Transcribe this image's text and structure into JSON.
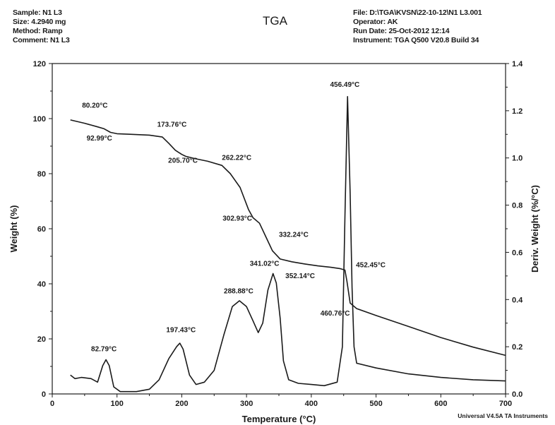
{
  "header_left": [
    "Sample: N1 L3",
    "Size:  4.2940 mg",
    "Method: Ramp",
    "Comment: N1 L3"
  ],
  "header_right": [
    "File: D:\\TGA\\KVSN\\22-10-12\\N1 L3.001",
    "Operator: AK",
    "Run Date: 25-Oct-2012 12:14",
    "Instrument: TGA Q500 V20.8 Build 34"
  ],
  "footer": "Universal V4.5A TA Instruments",
  "chart_data": {
    "type": "line",
    "title": "TGA",
    "xlabel": "Temperature (°C)",
    "ylabel": "Weight (%)",
    "y2label": "Deriv. Weight (%/°C)",
    "xlim": [
      0,
      700
    ],
    "ylim": [
      0,
      120
    ],
    "y2lim": [
      0.0,
      1.4
    ],
    "x_ticks": [
      "0",
      "100",
      "200",
      "300",
      "400",
      "500",
      "600",
      "700"
    ],
    "y_ticks": [
      "0",
      "20",
      "40",
      "60",
      "80",
      "100",
      "120"
    ],
    "y2_ticks": [
      "0.0",
      "0.2",
      "0.4",
      "0.6",
      "0.8",
      "1.0",
      "1.2",
      "1.4"
    ],
    "series": [
      {
        "axis": "left",
        "color": "#1a1a1a",
        "points": [
          [
            28,
            99.5
          ],
          [
            50,
            98.3
          ],
          [
            70,
            97.0
          ],
          [
            80,
            96.3
          ],
          [
            90,
            95.0
          ],
          [
            100,
            94.5
          ],
          [
            120,
            94.3
          ],
          [
            150,
            94.0
          ],
          [
            170,
            93.3
          ],
          [
            180,
            91.0
          ],
          [
            190,
            88.5
          ],
          [
            200,
            87.0
          ],
          [
            206,
            86.3
          ],
          [
            220,
            85.5
          ],
          [
            240,
            84.5
          ],
          [
            262,
            83.0
          ],
          [
            275,
            80.0
          ],
          [
            290,
            75.0
          ],
          [
            303,
            67.0
          ],
          [
            310,
            64.0
          ],
          [
            320,
            62.0
          ],
          [
            332,
            56.0
          ],
          [
            340,
            52.0
          ],
          [
            352,
            49.0
          ],
          [
            370,
            48.0
          ],
          [
            390,
            47.2
          ],
          [
            410,
            46.5
          ],
          [
            430,
            46.0
          ],
          [
            445,
            45.5
          ],
          [
            452,
            45.0
          ],
          [
            455,
            41.0
          ],
          [
            460,
            33.0
          ],
          [
            470,
            31.0
          ],
          [
            500,
            28.5
          ],
          [
            550,
            24.5
          ],
          [
            600,
            20.5
          ],
          [
            650,
            17.0
          ],
          [
            700,
            14.0
          ]
        ]
      },
      {
        "axis": "right",
        "color": "#1a1a1a",
        "points": [
          [
            28,
            0.08
          ],
          [
            35,
            0.065
          ],
          [
            45,
            0.07
          ],
          [
            60,
            0.065
          ],
          [
            70,
            0.05
          ],
          [
            78,
            0.12
          ],
          [
            83,
            0.145
          ],
          [
            88,
            0.12
          ],
          [
            95,
            0.03
          ],
          [
            105,
            0.01
          ],
          [
            130,
            0.01
          ],
          [
            150,
            0.02
          ],
          [
            165,
            0.06
          ],
          [
            180,
            0.15
          ],
          [
            192,
            0.2
          ],
          [
            197,
            0.215
          ],
          [
            202,
            0.19
          ],
          [
            212,
            0.08
          ],
          [
            222,
            0.04
          ],
          [
            235,
            0.05
          ],
          [
            250,
            0.1
          ],
          [
            265,
            0.25
          ],
          [
            278,
            0.37
          ],
          [
            289,
            0.395
          ],
          [
            300,
            0.37
          ],
          [
            310,
            0.31
          ],
          [
            318,
            0.26
          ],
          [
            325,
            0.3
          ],
          [
            333,
            0.44
          ],
          [
            341,
            0.51
          ],
          [
            346,
            0.47
          ],
          [
            352,
            0.32
          ],
          [
            357,
            0.14
          ],
          [
            365,
            0.06
          ],
          [
            380,
            0.045
          ],
          [
            400,
            0.04
          ],
          [
            420,
            0.035
          ],
          [
            440,
            0.05
          ],
          [
            448,
            0.2
          ],
          [
            452,
            0.75
          ],
          [
            456,
            1.26
          ],
          [
            460,
            0.85
          ],
          [
            463,
            0.45
          ],
          [
            466,
            0.2
          ],
          [
            470,
            0.13
          ],
          [
            500,
            0.11
          ],
          [
            550,
            0.085
          ],
          [
            600,
            0.07
          ],
          [
            650,
            0.06
          ],
          [
            700,
            0.055
          ]
        ]
      }
    ],
    "annotations": [
      {
        "text": "80.20°C",
        "x": 46,
        "y": 104
      },
      {
        "text": "92.99°C",
        "x": 53,
        "y": 92
      },
      {
        "text": "173.76°C",
        "x": 162,
        "y": 97
      },
      {
        "text": "205.70°C",
        "x": 179,
        "y": 84
      },
      {
        "text": "262.22°C",
        "x": 262,
        "y": 85
      },
      {
        "text": "302.93°C",
        "x": 263,
        "y": 63
      },
      {
        "text": "332.24°C",
        "x": 350,
        "y": 57
      },
      {
        "text": "352.14°C",
        "x": 360,
        "y": 42
      },
      {
        "text": "452.45°C",
        "x": 469,
        "y": 46
      },
      {
        "text": "460.76°C",
        "x": 414,
        "y": 28.5
      },
      {
        "text": "456.49°C",
        "x": 429,
        "y": 111.5
      },
      {
        "text": "82.79°C",
        "x": 60,
        "y": 15.5
      },
      {
        "text": "197.43°C",
        "x": 176,
        "y": 22.5
      },
      {
        "text": "288.88°C",
        "x": 265,
        "y": 36.5
      },
      {
        "text": "341.02°C",
        "x": 305,
        "y": 46.5
      }
    ],
    "grid": false,
    "legend": "none"
  }
}
